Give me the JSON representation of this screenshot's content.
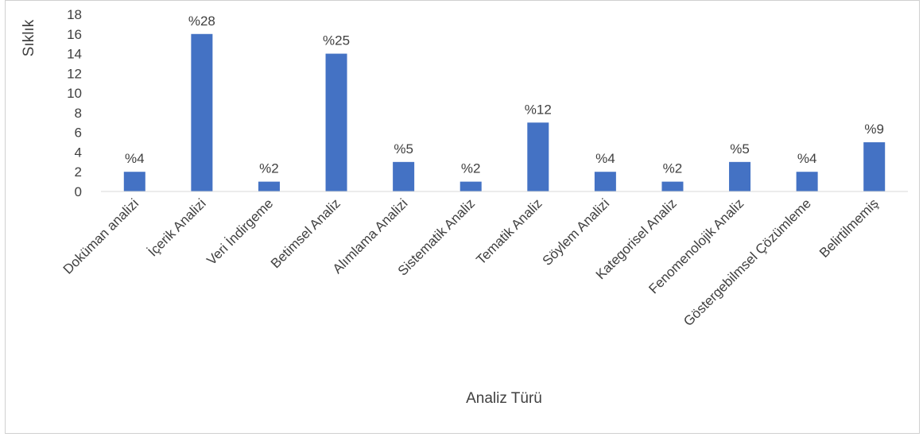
{
  "chart_data": {
    "type": "bar",
    "title": "",
    "xlabel": "Analiz Türü",
    "ylabel": "Sıklık",
    "ylim": [
      0,
      18
    ],
    "yticks": [
      0,
      2,
      4,
      6,
      8,
      10,
      12,
      14,
      16,
      18
    ],
    "grid": false,
    "legend": "none",
    "bar_color": "#4472C4",
    "categories": [
      "Doküman analizi",
      "İçerik Analizi",
      "Veri İndirgeme",
      "Betimsel Analiz",
      "Alımlama Analizi",
      "Sistematik Analiz",
      "Tematik Analiz",
      "Söylem Analizi",
      "Kategorisel Analiz",
      "Fenomenolojik Analiz",
      "Göstergebilmsel Çözümleme",
      "Belirtilmemiş"
    ],
    "values": [
      2,
      16,
      1,
      14,
      3,
      1,
      7,
      2,
      1,
      3,
      2,
      5
    ],
    "data_labels": [
      "%4",
      "%28",
      "%2",
      "%25",
      "%5",
      "%2",
      "%12",
      "%4",
      "%2",
      "%5",
      "%4",
      "%9"
    ]
  }
}
